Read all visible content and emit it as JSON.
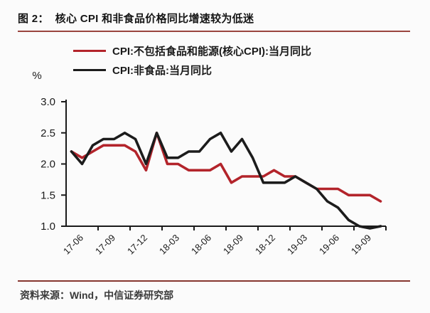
{
  "page": {
    "figure_title": "图 2：  核心 CPI 和非食品价格同比增速较为低迷",
    "source_note": "资料来源：Wind，中信证券研究部",
    "title_rule_color": "#9a453e",
    "footer_rule_color": "#86362f"
  },
  "chart_data": {
    "type": "line",
    "title": "核心 CPI 和非食品价格同比增速较为低迷",
    "ylabel": "%",
    "xlabel": "",
    "ylim": [
      1.0,
      3.0
    ],
    "yticks": [
      "3.0",
      "2.5",
      "2.0",
      "1.5",
      "1.0"
    ],
    "xticks": [
      "17-06",
      "17-09",
      "17-12",
      "18-03",
      "18-06",
      "18-09",
      "18-12",
      "19-03",
      "19-06",
      "19-09"
    ],
    "grid": false,
    "legend_position": "top",
    "x": [
      "17-06",
      "17-07",
      "17-08",
      "17-09",
      "17-10",
      "17-11",
      "17-12",
      "18-01",
      "18-02",
      "18-03",
      "18-04",
      "18-05",
      "18-06",
      "18-07",
      "18-08",
      "18-09",
      "18-10",
      "18-11",
      "18-12",
      "19-01",
      "19-02",
      "19-03",
      "19-04",
      "19-05",
      "19-06",
      "19-07",
      "19-08",
      "19-09",
      "19-10",
      "19-11"
    ],
    "series": [
      {
        "name": "CPI:不包括食品和能源(核心CPI):当月同比",
        "color": "#b3242b",
        "values": [
          2.2,
          2.1,
          2.2,
          2.3,
          2.3,
          2.3,
          2.2,
          1.9,
          2.5,
          2.0,
          2.0,
          1.9,
          1.9,
          1.9,
          2.0,
          1.7,
          1.8,
          1.8,
          1.8,
          1.9,
          1.8,
          1.8,
          1.7,
          1.6,
          1.6,
          1.6,
          1.5,
          1.5,
          1.5,
          1.4
        ]
      },
      {
        "name": "CPI:非食品:当月同比",
        "color": "#1c1c1c",
        "values": [
          2.2,
          2.0,
          2.3,
          2.4,
          2.4,
          2.5,
          2.4,
          2.0,
          2.5,
          2.1,
          2.1,
          2.2,
          2.2,
          2.4,
          2.5,
          2.2,
          2.4,
          2.1,
          1.7,
          1.7,
          1.7,
          1.8,
          1.7,
          1.6,
          1.4,
          1.3,
          1.1,
          1.0,
          0.9,
          1.0
        ]
      }
    ]
  }
}
